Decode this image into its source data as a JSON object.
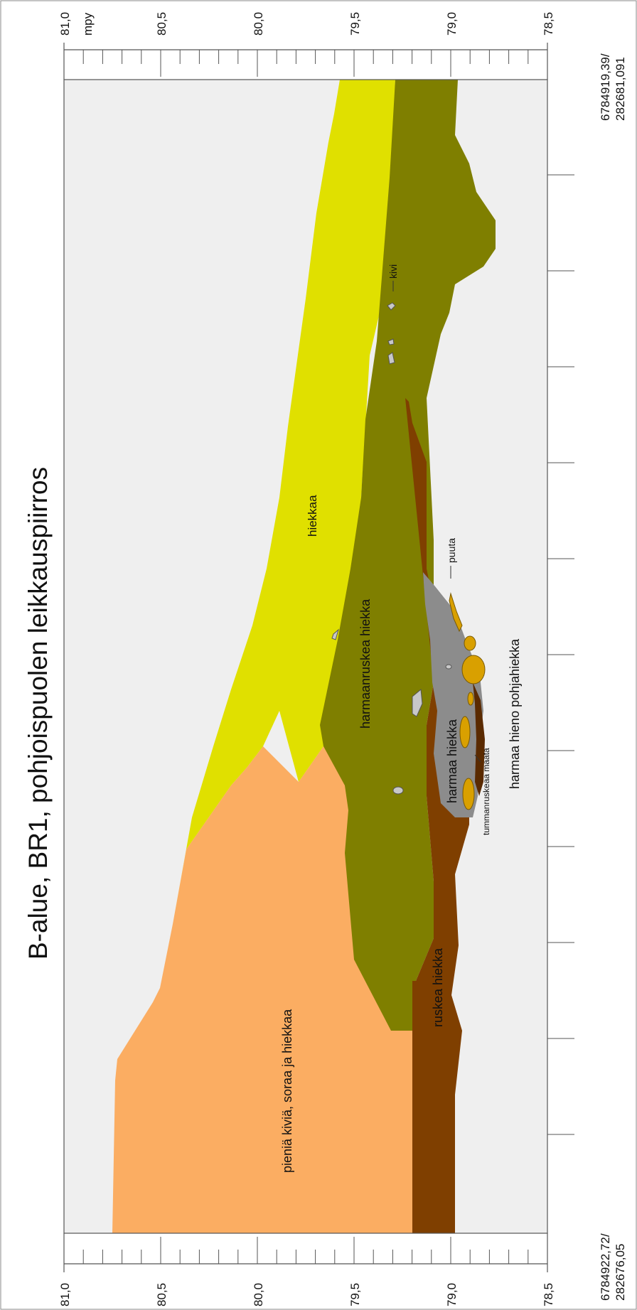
{
  "title": "B-alue, BR1, pohjoispuolen leikkauspiirros",
  "axis_unit": "mpy",
  "axis_ticks": [
    "81,0",
    "80,5",
    "80,0",
    "79,5",
    "79,0",
    "78,5"
  ],
  "coords": {
    "top": [
      "6784919,39/",
      "282681,091"
    ],
    "bottom": [
      "6784922,72/",
      "282676,05"
    ]
  },
  "layers": {
    "sand": "hiekkaa",
    "gravel": "pieniä kiviä, soraa ja hiekkaa",
    "graybrown": "harmaanruskea hiekka",
    "brown": "ruskea hiekka",
    "gray": "harmaa hiekka",
    "dark": "tummanruskeaa maata",
    "base": "harmaa hieno pohjahiekka"
  },
  "annotations": {
    "stone": "kivi",
    "wood": "puuta"
  },
  "colors": {
    "sand": "#e0e000",
    "gravel": "#fbad62",
    "graybrown": "#7f7f00",
    "brown": "#7f3f00",
    "gray": "#8c8c8c",
    "wood": "#d9a000",
    "stone": "#c8c8c8",
    "base": "#efefef"
  }
}
